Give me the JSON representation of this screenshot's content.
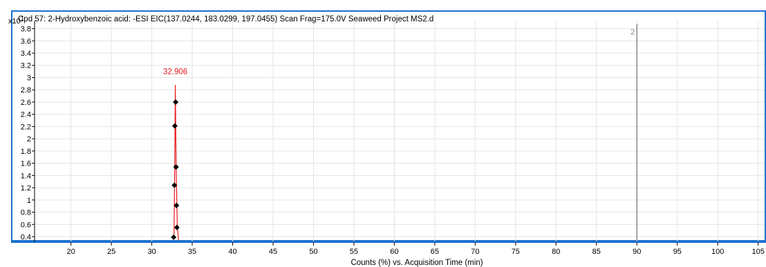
{
  "exponent_label": {
    "base": "x10",
    "power": "1"
  },
  "chart_data": {
    "type": "line",
    "title": "Cpd 57: 2-Hydroxybenzoic acid: -ESI EIC(137.0244, 183.0299, 197.0455) Scan Frag=175.0V Seaweed Project MS2.d",
    "xlabel": "Counts (%) vs. Acquisition Time (min)",
    "ylabel": "",
    "xlim": [
      15.5,
      105.8
    ],
    "ylim": [
      0.31,
      3.84
    ],
    "x_ticks": [
      20,
      25,
      30,
      35,
      40,
      45,
      50,
      55,
      60,
      65,
      70,
      75,
      80,
      85,
      90,
      95,
      100,
      105
    ],
    "y_ticks": [
      0.4,
      0.6,
      0.8,
      1,
      1.2,
      1.4,
      1.6,
      1.8,
      2,
      2.2,
      2.4,
      2.6,
      2.8,
      3,
      3.2,
      3.4,
      3.6,
      3.8
    ],
    "grid": true,
    "series": [
      {
        "color": "#e8191c",
        "x": [
          32.75,
          32.85,
          32.906,
          33.0,
          33.15,
          33.3
        ],
        "y": [
          0.38,
          1.8,
          2.88,
          1.6,
          0.6,
          0.34
        ]
      }
    ],
    "markers": {
      "color": "#000000",
      "points": [
        {
          "x": 32.95,
          "y": 2.6
        },
        {
          "x": 32.85,
          "y": 2.21
        },
        {
          "x": 33.0,
          "y": 1.54
        },
        {
          "x": 32.8,
          "y": 1.24
        },
        {
          "x": 33.05,
          "y": 0.91
        },
        {
          "x": 33.1,
          "y": 0.55
        },
        {
          "x": 32.7,
          "y": 0.39
        }
      ]
    },
    "peak_label": {
      "text": "32.906",
      "x": 32.906,
      "y": 3.1,
      "color": "#e8191c"
    },
    "reference_line": {
      "x": 90,
      "label": "2",
      "color": "#a0a0a0"
    },
    "frame_color": "#1a6fd0"
  }
}
